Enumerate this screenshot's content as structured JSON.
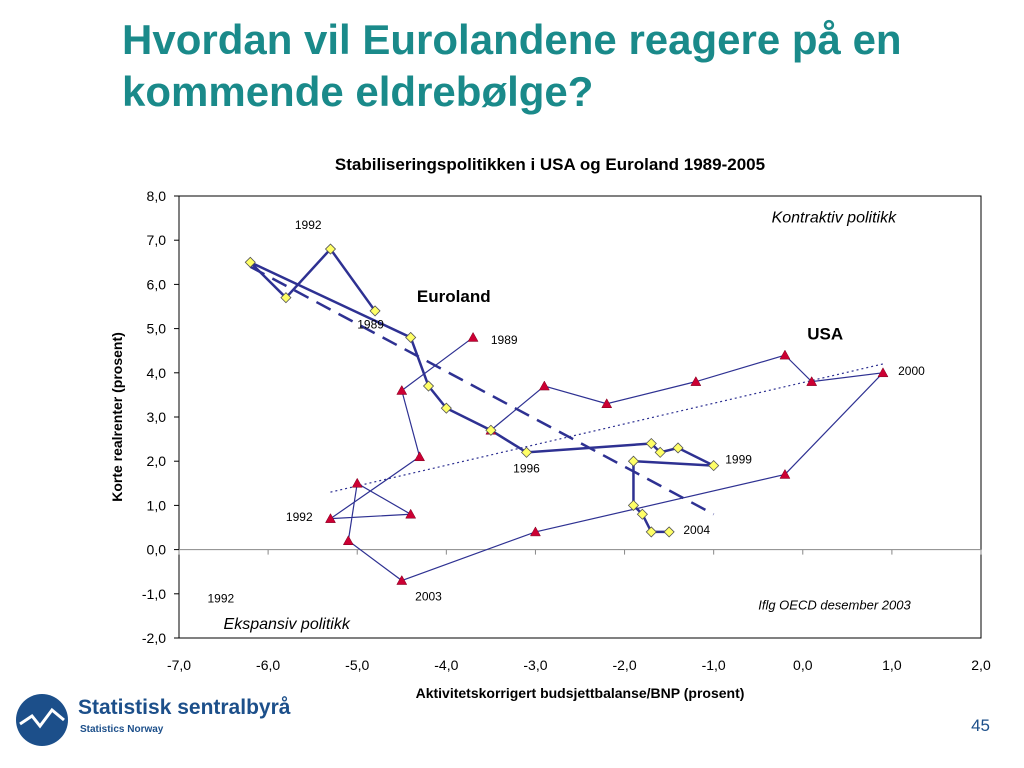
{
  "slide": {
    "title": "Hvordan vil Eurolandene reagere på en kommende eldrebølge?",
    "page_number": "45"
  },
  "logo": {
    "name": "Statistisk sentralbyrå",
    "subtitle": "Statistics Norway"
  },
  "colors": {
    "title": "#1a8a8a",
    "euroland_line": "#2e3192",
    "euroland_marker": "#ffff66",
    "usa_line": "#2e3192",
    "usa_marker": "#cc0033",
    "logo": "#1c4f8a"
  },
  "chart_data": {
    "type": "scatter",
    "title": "Stabiliseringspolitikken i USA og Euroland 1989-2005",
    "xlabel": "Aktivitetskorrigert budsjettbalanse/BNP (prosent)",
    "ylabel": "Korte realrenter (prosent)",
    "xlim": [
      -7,
      2
    ],
    "ylim": [
      -2,
      8
    ],
    "x_ticks": [
      "-7,0",
      "-6,0",
      "-5,0",
      "-4,0",
      "-3,0",
      "-2,0",
      "-1,0",
      "0,0",
      "1,0",
      "2,0"
    ],
    "y_ticks": [
      "8,0",
      "7,0",
      "6,0",
      "5,0",
      "4,0",
      "3,0",
      "2,0",
      "1,0",
      "0,0",
      "-1,0",
      "-2,0"
    ],
    "grid": false,
    "series": [
      {
        "name": "Euroland",
        "marker": "diamond",
        "points": [
          {
            "x": -4.8,
            "y": 5.4
          },
          {
            "x": -5.3,
            "y": 6.8
          },
          {
            "x": -5.8,
            "y": 5.7
          },
          {
            "x": -6.2,
            "y": 6.5
          },
          {
            "x": -4.4,
            "y": 4.8
          },
          {
            "x": -4.2,
            "y": 3.7
          },
          {
            "x": -4.0,
            "y": 3.2
          },
          {
            "x": -3.5,
            "y": 2.7
          },
          {
            "x": -3.1,
            "y": 2.2
          },
          {
            "x": -1.7,
            "y": 2.4
          },
          {
            "x": -1.6,
            "y": 2.2
          },
          {
            "x": -1.4,
            "y": 2.3
          },
          {
            "x": -1.0,
            "y": 1.9
          },
          {
            "x": -1.9,
            "y": 2.0
          },
          {
            "x": -1.9,
            "y": 1.0
          },
          {
            "x": -1.8,
            "y": 0.8
          },
          {
            "x": -1.7,
            "y": 0.4
          },
          {
            "x": -1.5,
            "y": 0.4
          }
        ],
        "trend": {
          "from": [
            -6.2,
            6.4
          ],
          "to": [
            -1.0,
            0.8
          ]
        }
      },
      {
        "name": "USA",
        "marker": "triangle",
        "points": [
          {
            "x": -3.7,
            "y": 4.8
          },
          {
            "x": -4.5,
            "y": 3.6
          },
          {
            "x": -4.3,
            "y": 2.1
          },
          {
            "x": -5.3,
            "y": 0.7
          },
          {
            "x": -4.4,
            "y": 0.8
          },
          {
            "x": -5.0,
            "y": 1.5
          },
          {
            "x": -5.1,
            "y": 0.2
          },
          {
            "x": -4.5,
            "y": -0.7
          },
          {
            "x": -3.0,
            "y": 0.4
          },
          {
            "x": -0.2,
            "y": 1.7
          },
          {
            "x": 0.9,
            "y": 4.0
          },
          {
            "x": 0.1,
            "y": 3.8
          },
          {
            "x": -0.2,
            "y": 4.4
          },
          {
            "x": -1.2,
            "y": 3.8
          },
          {
            "x": -2.2,
            "y": 3.3
          },
          {
            "x": -2.9,
            "y": 3.7
          },
          {
            "x": -3.5,
            "y": 2.7
          }
        ],
        "trend": {
          "from": [
            -5.3,
            1.3
          ],
          "to": [
            0.9,
            4.2
          ]
        }
      }
    ],
    "annotations": [
      {
        "text": "Euroland",
        "x": -4.33,
        "y": 5.6,
        "style": "bold"
      },
      {
        "text": "USA",
        "x": 0.05,
        "y": 4.75,
        "style": "bold"
      },
      {
        "text": "Kontraktiv politikk",
        "x": -0.35,
        "y": 7.4,
        "style": "italic"
      },
      {
        "text": "Ekspansiv politikk",
        "x": -6.5,
        "y": -1.8,
        "style": "italic"
      },
      {
        "text": "Iflg OECD desember 2003",
        "x": -0.5,
        "y": -1.35,
        "style": "italic-small"
      },
      {
        "text": "1992",
        "x": -5.7,
        "y": 7.25,
        "style": "year"
      },
      {
        "text": "1989",
        "x": -5.0,
        "y": 5.0,
        "style": "year"
      },
      {
        "text": "1989",
        "x": -3.5,
        "y": 4.65,
        "style": "year"
      },
      {
        "text": "1996",
        "x": -3.25,
        "y": 1.75,
        "style": "year"
      },
      {
        "text": "1999",
        "x": -0.87,
        "y": 1.95,
        "style": "year"
      },
      {
        "text": "2004",
        "x": -1.34,
        "y": 0.35,
        "style": "year"
      },
      {
        "text": "2000",
        "x": 1.07,
        "y": 3.95,
        "style": "year"
      },
      {
        "text": "1992",
        "x": -5.8,
        "y": 0.65,
        "style": "year"
      },
      {
        "text": "2003",
        "x": -4.35,
        "y": -1.15,
        "style": "year"
      },
      {
        "text": "1992",
        "x": -6.68,
        "y": -1.2,
        "style": "year"
      }
    ]
  }
}
